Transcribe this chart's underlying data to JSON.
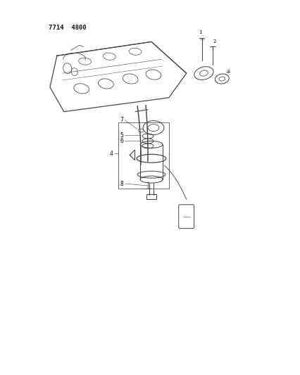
{
  "title": "7714  4800",
  "title_fontsize": 6.5,
  "bg_color": "#ffffff",
  "line_color": "#444444",
  "label_color": "#111111",
  "fig_width": 4.27,
  "fig_height": 5.33,
  "dpi": 100
}
